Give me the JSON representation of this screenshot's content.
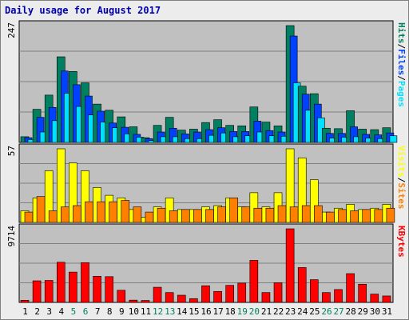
{
  "title": "Daily usage for August 2017",
  "chart_data": [
    {
      "name": "hits-files-pages",
      "type": "bar",
      "ymax_label": "247",
      "ylim": [
        0,
        247
      ],
      "legend": [
        {
          "label": "Pages",
          "color": "#00e0ff"
        },
        {
          "label": "Files",
          "color": "#0040ff"
        },
        {
          "label": "Hits",
          "color": "#008060"
        }
      ],
      "separator": "/",
      "separator_color": "#000000",
      "categories": [
        "1",
        "2",
        "3",
        "4",
        "5",
        "6",
        "7",
        "8",
        "9",
        "10",
        "11",
        "12",
        "13",
        "14",
        "15",
        "16",
        "17",
        "18",
        "19",
        "20",
        "21",
        "22",
        "23",
        "24",
        "25",
        "26",
        "27",
        "28",
        "29",
        "30",
        "31"
      ],
      "series": [
        {
          "name": "Hits",
          "color": "#008060",
          "values": [
            12,
            70,
            100,
            181,
            150,
            126,
            81,
            68,
            54,
            33,
            10,
            36,
            53,
            26,
            28,
            42,
            48,
            36,
            35,
            75,
            43,
            35,
            247,
            119,
            103,
            30,
            29,
            67,
            28,
            27,
            31
          ]
        },
        {
          "name": "Files",
          "color": "#0040ff",
          "values": [
            10,
            53,
            74,
            151,
            122,
            98,
            66,
            41,
            32,
            17,
            8,
            22,
            30,
            18,
            22,
            27,
            31,
            23,
            23,
            45,
            25,
            22,
            225,
            102,
            81,
            19,
            19,
            33,
            17,
            16,
            20
          ]
        },
        {
          "name": "Pages",
          "color": "#00e0ff",
          "values": [
            6,
            22,
            46,
            104,
            76,
            58,
            43,
            31,
            18,
            11,
            4,
            12,
            12,
            8,
            8,
            15,
            20,
            12,
            14,
            22,
            14,
            13,
            126,
            68,
            52,
            9,
            11,
            12,
            9,
            8,
            14
          ]
        }
      ]
    },
    {
      "name": "visits-sites",
      "type": "bar",
      "ymax_label": "57",
      "ylim": [
        0,
        57
      ],
      "legend": [
        {
          "label": "Sites",
          "color": "#ff8000"
        },
        {
          "label": "Visits",
          "color": "#ffff00"
        }
      ],
      "separator": "/",
      "separator_color": "#000000",
      "categories": [
        "1",
        "2",
        "3",
        "4",
        "5",
        "6",
        "7",
        "8",
        "9",
        "10",
        "11",
        "12",
        "13",
        "14",
        "15",
        "16",
        "17",
        "18",
        "19",
        "20",
        "21",
        "22",
        "23",
        "24",
        "25",
        "26",
        "27",
        "28",
        "29",
        "30",
        "31"
      ],
      "series": [
        {
          "name": "Visits",
          "color": "#ffff00",
          "values": [
            9,
            19,
            40,
            57,
            46,
            40,
            27,
            21,
            19,
            10,
            4,
            12,
            19,
            10,
            10,
            12,
            13,
            19,
            12,
            23,
            12,
            23,
            57,
            50,
            33,
            8,
            11,
            14,
            10,
            11,
            14
          ]
        },
        {
          "name": "Sites",
          "color": "#ff8000",
          "values": [
            8,
            20,
            9,
            12,
            13,
            16,
            16,
            16,
            17,
            12,
            8,
            11,
            9,
            10,
            10,
            10,
            12,
            19,
            12,
            11,
            11,
            13,
            12,
            13,
            13,
            8,
            10,
            9,
            10,
            10,
            11
          ]
        }
      ]
    },
    {
      "name": "kbytes",
      "type": "bar",
      "ymax_label": "9714",
      "ylim": [
        0,
        9714
      ],
      "legend": [
        {
          "label": "KBytes",
          "color": "#ff0000"
        }
      ],
      "categories": [
        "1",
        "2",
        "3",
        "4",
        "5",
        "6",
        "7",
        "8",
        "9",
        "10",
        "11",
        "12",
        "13",
        "14",
        "15",
        "16",
        "17",
        "18",
        "19",
        "20",
        "21",
        "22",
        "23",
        "24",
        "25",
        "26",
        "27",
        "28",
        "29",
        "30",
        "31"
      ],
      "series": [
        {
          "name": "KBytes",
          "color": "#ff0000",
          "values": [
            280,
            2850,
            2900,
            5300,
            4000,
            5250,
            3450,
            3400,
            1600,
            300,
            260,
            2000,
            1300,
            950,
            500,
            2200,
            1450,
            2250,
            2550,
            5550,
            1300,
            2600,
            9714,
            4600,
            3000,
            1300,
            1700,
            3800,
            2400,
            1100,
            850
          ]
        }
      ]
    }
  ],
  "x_axis": {
    "labels": [
      "1",
      "2",
      "3",
      "4",
      "5",
      "6",
      "7",
      "8",
      "9",
      "10",
      "11",
      "12",
      "13",
      "14",
      "15",
      "16",
      "17",
      "18",
      "19",
      "20",
      "21",
      "22",
      "23",
      "24",
      "25",
      "26",
      "27",
      "28",
      "29",
      "30",
      "31"
    ],
    "weekend_days": [
      "5",
      "6",
      "12",
      "13",
      "19",
      "20",
      "26",
      "27"
    ],
    "weekday_color": "#000000",
    "weekend_color": "#008060"
  },
  "colors": {
    "plot_background": "#c0c0c0",
    "grid": "#808080",
    "frame": "#ececec"
  }
}
